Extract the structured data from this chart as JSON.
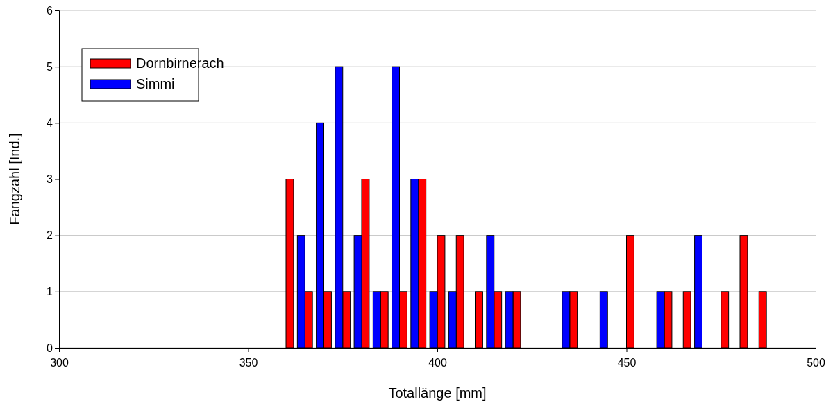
{
  "chart_data": {
    "type": "bar",
    "xlabel": "Totallänge [mm]",
    "ylabel": "Fangzahl [Ind.]",
    "x": [
      360,
      365,
      370,
      375,
      380,
      385,
      390,
      395,
      400,
      405,
      410,
      415,
      420,
      425,
      430,
      435,
      440,
      445,
      450,
      455,
      460,
      465,
      470,
      475,
      480,
      485
    ],
    "series": [
      {
        "name": "Dornbirnerach",
        "color": "#ff0000",
        "values": [
          3,
          1,
          1,
          1,
          3,
          1,
          1,
          3,
          2,
          2,
          1,
          1,
          1,
          0,
          0,
          1,
          0,
          0,
          2,
          0,
          1,
          1,
          0,
          1,
          2,
          1
        ]
      },
      {
        "name": "Simmi",
        "color": "#0000ff",
        "values": [
          0,
          2,
          4,
          5,
          2,
          1,
          5,
          3,
          1,
          1,
          0,
          2,
          1,
          0,
          0,
          1,
          0,
          1,
          0,
          0,
          1,
          0,
          2,
          0,
          0,
          0
        ]
      }
    ],
    "xlim": [
      300,
      500
    ],
    "xticks": [
      300,
      350,
      400,
      450,
      500
    ],
    "ylim": [
      0,
      6
    ],
    "yticks": [
      0,
      1,
      2,
      3,
      4,
      5,
      6
    ],
    "grid": "y",
    "legend": "top left"
  }
}
